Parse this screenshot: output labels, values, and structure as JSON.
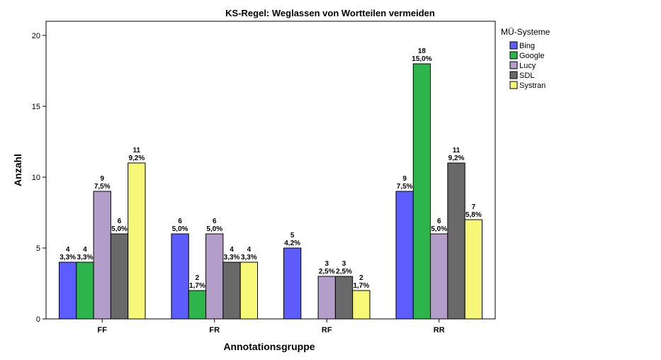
{
  "chart_data": {
    "type": "bar",
    "title": "KS-Regel: Weglassen von Wortteilen vermeiden",
    "xlabel": "Annotationsgruppe",
    "ylabel": "Anzahl",
    "ylim": [
      0,
      21
    ],
    "yticks": [
      0,
      5,
      10,
      15,
      20
    ],
    "grid": false,
    "legend_title": "MÜ-Systeme",
    "legend_position": "right",
    "categories": [
      "FF",
      "FR",
      "RF",
      "RR"
    ],
    "series": [
      {
        "name": "Bing",
        "color": "#5c5cff",
        "values": [
          4,
          6,
          5,
          9
        ],
        "labels": [
          [
            "4",
            "3,3%"
          ],
          [
            "6",
            "5,0%"
          ],
          [
            "5",
            "4,2%"
          ],
          [
            "9",
            "7,5%"
          ]
        ]
      },
      {
        "name": "Google",
        "color": "#2db44a",
        "values": [
          4,
          2,
          null,
          18
        ],
        "labels": [
          [
            "4",
            "3,3%"
          ],
          [
            "2",
            "1,7%"
          ],
          null,
          [
            "18",
            "15,0%"
          ]
        ]
      },
      {
        "name": "Lucy",
        "color": "#b39dc9",
        "values": [
          9,
          6,
          3,
          6
        ],
        "labels": [
          [
            "9",
            "7,5%"
          ],
          [
            "6",
            "5,0%"
          ],
          [
            "3",
            "2,5%"
          ],
          [
            "6",
            "5,0%"
          ]
        ]
      },
      {
        "name": "SDL",
        "color": "#696969",
        "values": [
          6,
          4,
          3,
          11
        ],
        "labels": [
          [
            "6",
            "5,0%"
          ],
          [
            "4",
            "3,3%"
          ],
          [
            "3",
            "2,5%"
          ],
          [
            "11",
            "9,2%"
          ]
        ]
      },
      {
        "name": "Systran",
        "color": "#f8f878",
        "values": [
          11,
          4,
          2,
          7
        ],
        "labels": [
          [
            "11",
            "9,2%"
          ],
          [
            "4",
            "3,3%"
          ],
          [
            "2",
            "1,7%"
          ],
          [
            "7",
            "5,8%"
          ]
        ]
      }
    ]
  }
}
